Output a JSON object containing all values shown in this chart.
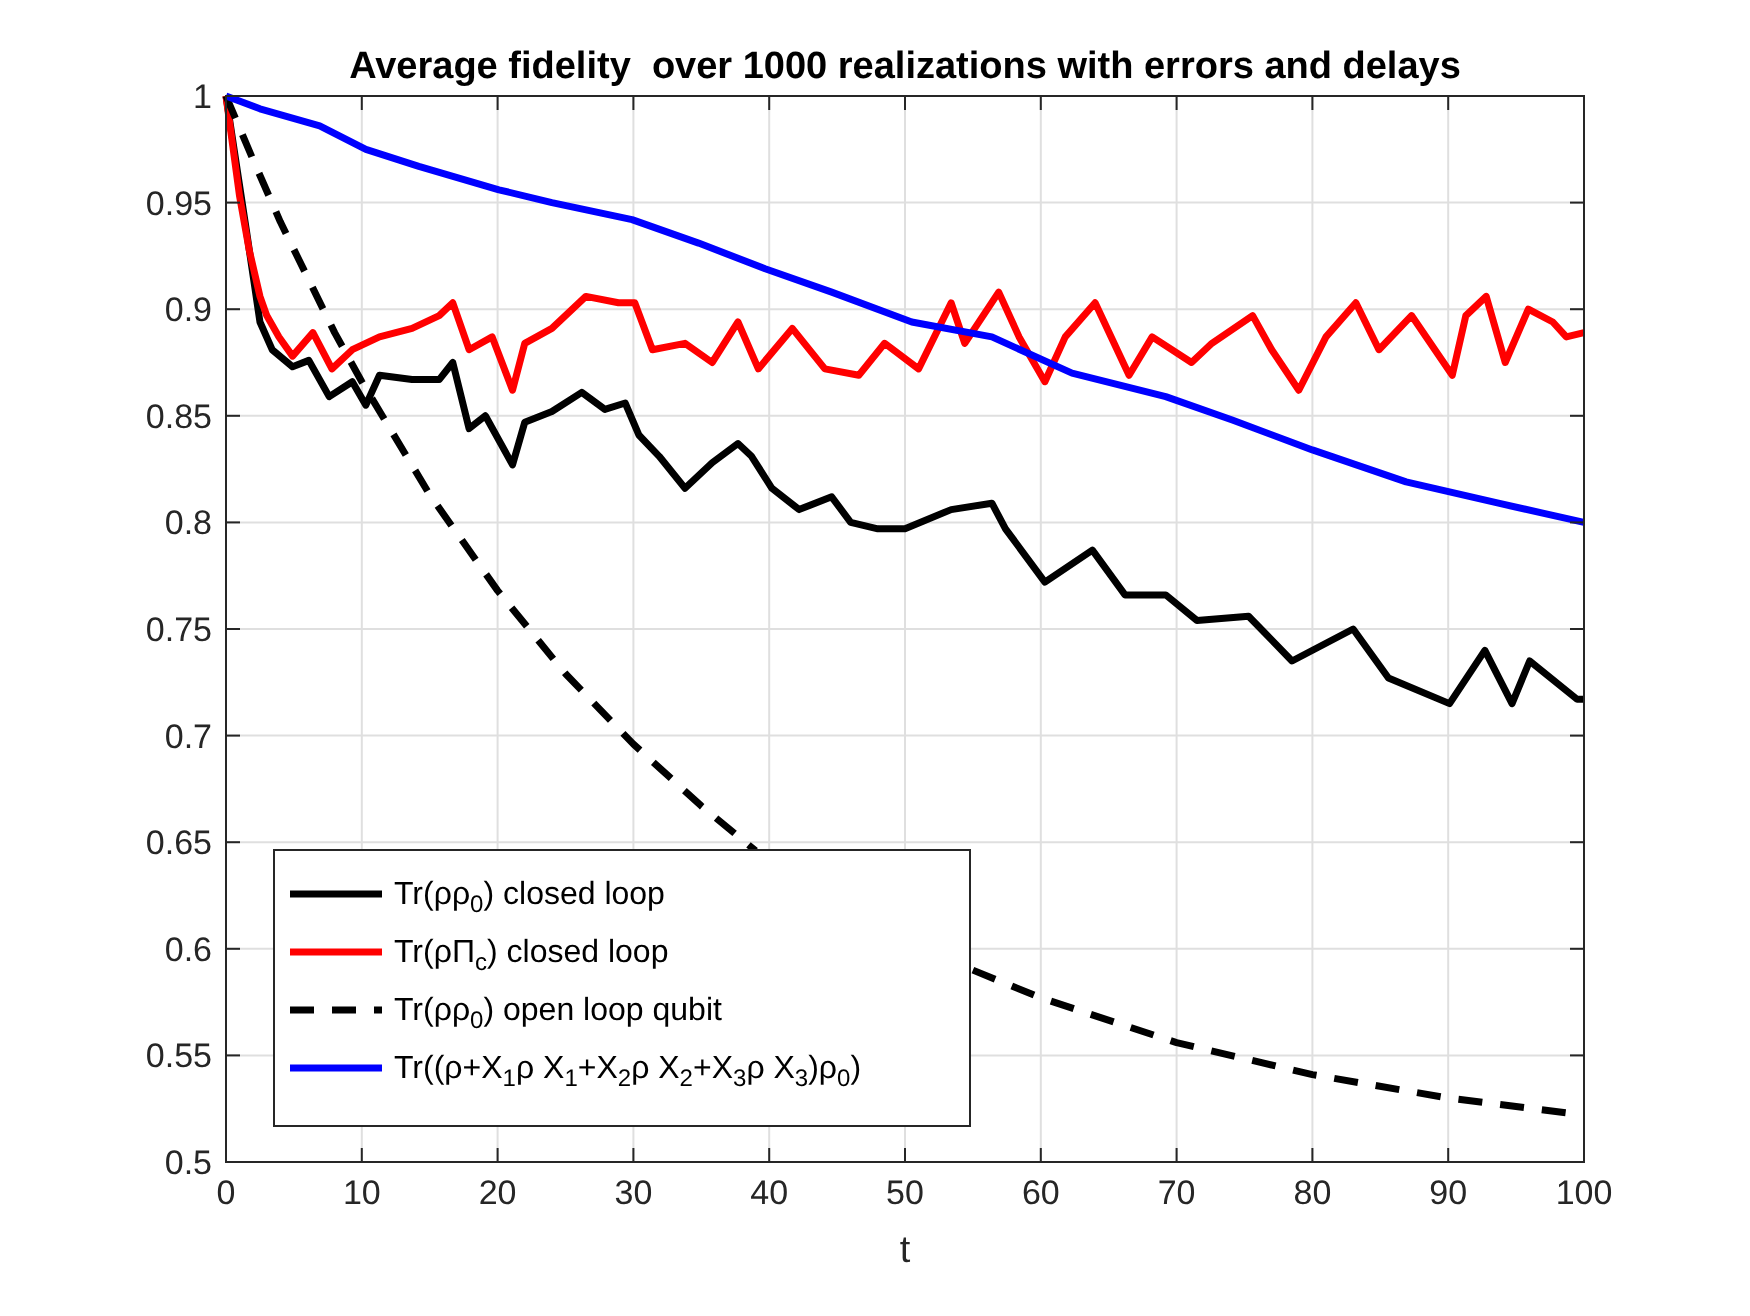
{
  "chart_data": {
    "type": "line",
    "title": "Average fidelity  over 1000 realizations with errors and delays",
    "xlabel": "t",
    "xlim": [
      0,
      100
    ],
    "xticks": [
      0,
      10,
      20,
      30,
      40,
      50,
      60,
      70,
      80,
      90,
      100
    ],
    "ylim": [
      0.5,
      1
    ],
    "yticks": [
      0.5,
      0.55,
      0.6,
      0.65,
      0.7,
      0.75,
      0.8,
      0.85,
      0.9,
      0.95,
      1
    ],
    "grid": true,
    "legend": "bottom left",
    "marker": "none",
    "series": [
      {
        "name": "Tr(ρρ$_{0}$) closed loop",
        "color": "#000000",
        "line_style": "solid",
        "x": [
          0,
          1.5,
          2.5,
          3.4,
          4.9,
          6.1,
          7.6,
          9.3,
          10.3,
          11.3,
          13.7,
          15.7,
          16.7,
          17.9,
          19.1,
          21.1,
          22,
          24,
          26.2,
          27.9,
          29.4,
          30.4,
          31.9,
          33.8,
          35.8,
          37.7,
          38.7,
          40.2,
          42.2,
          44.6,
          46,
          48,
          50,
          53.4,
          56.4,
          57.4,
          60.3,
          63.8,
          66.2,
          69.2,
          71.5,
          75.3,
          78.5,
          83,
          85.6,
          90.1,
          92.7,
          94.7,
          96,
          99.5,
          100
        ],
        "values": [
          1,
          0.937,
          0.894,
          0.881,
          0.873,
          0.876,
          0.859,
          0.866,
          0.855,
          0.869,
          0.867,
          0.867,
          0.875,
          0.844,
          0.85,
          0.827,
          0.847,
          0.852,
          0.861,
          0.853,
          0.856,
          0.841,
          0.831,
          0.816,
          0.828,
          0.837,
          0.831,
          0.816,
          0.806,
          0.812,
          0.8,
          0.797,
          0.797,
          0.806,
          0.809,
          0.797,
          0.772,
          0.787,
          0.766,
          0.766,
          0.754,
          0.756,
          0.735,
          0.75,
          0.727,
          0.715,
          0.74,
          0.715,
          0.735,
          0.717,
          0.717
        ]
      },
      {
        "name": "Tr(ρΠ$_{c}$) closed loop",
        "color": "#ff0000",
        "line_style": "solid",
        "x": [
          0,
          1,
          1.7,
          2.5,
          3,
          3.9,
          4.9,
          6.4,
          7.8,
          9.3,
          11.3,
          13.7,
          15.7,
          16.7,
          17.9,
          19.6,
          21.1,
          22,
          24,
          26.5,
          28.9,
          30.1,
          31.4,
          33.8,
          35.8,
          37.7,
          39.2,
          41.7,
          44.1,
          46.6,
          48.5,
          51,
          53.4,
          54.4,
          56.9,
          58.4,
          60.3,
          61.8,
          64,
          66.5,
          68.2,
          71.1,
          72.6,
          75.6,
          77,
          79,
          81,
          83.2,
          84.9,
          87.3,
          90.3,
          91.3,
          92.8,
          94.2,
          95.9,
          97.7,
          98.7,
          100
        ],
        "values": [
          1,
          0.953,
          0.928,
          0.906,
          0.897,
          0.887,
          0.878,
          0.889,
          0.872,
          0.881,
          0.887,
          0.891,
          0.897,
          0.903,
          0.881,
          0.887,
          0.862,
          0.884,
          0.891,
          0.906,
          0.903,
          0.903,
          0.881,
          0.884,
          0.875,
          0.894,
          0.872,
          0.891,
          0.872,
          0.869,
          0.884,
          0.872,
          0.903,
          0.884,
          0.908,
          0.887,
          0.866,
          0.887,
          0.903,
          0.869,
          0.887,
          0.875,
          0.884,
          0.897,
          0.881,
          0.862,
          0.887,
          0.903,
          0.881,
          0.897,
          0.869,
          0.897,
          0.906,
          0.875,
          0.9,
          0.894,
          0.887,
          0.889
        ]
      },
      {
        "name": "Tr(ρρ$_{0}$) open loop qubit",
        "color": "#000000",
        "line_style": "dashed",
        "x": [
          0,
          2,
          4,
          6,
          8,
          10,
          15,
          20,
          25,
          30,
          35,
          39,
          47,
          55,
          60,
          70,
          80,
          90,
          100
        ],
        "values": [
          1,
          0.97,
          0.941,
          0.915,
          0.889,
          0.866,
          0.813,
          0.768,
          0.729,
          0.696,
          0.667,
          0.646,
          null,
          0.59,
          0.577,
          0.556,
          0.541,
          0.53,
          0.522
        ]
      },
      {
        "name": "Tr((ρ+X$_{1}$ρ X$_{1}$+X$_{2}$ρ X$_{2}$+X$_{3}$ρ X$_{3}$)ρ$_{0}$)",
        "color": "#0000ff",
        "line_style": "solid",
        "x": [
          0,
          2.5,
          6.9,
          10.3,
          14.2,
          20.1,
          24,
          29.9,
          34.8,
          39.7,
          44.6,
          50.5,
          56.4,
          62.3,
          69.2,
          74.1,
          80,
          86.9,
          93.7,
          100
        ],
        "values": [
          1,
          0.994,
          0.986,
          0.975,
          0.967,
          0.956,
          0.95,
          0.942,
          0.931,
          0.919,
          0.908,
          0.894,
          0.887,
          0.87,
          0.859,
          0.848,
          0.834,
          0.819,
          0.809,
          0.8
        ]
      }
    ]
  }
}
